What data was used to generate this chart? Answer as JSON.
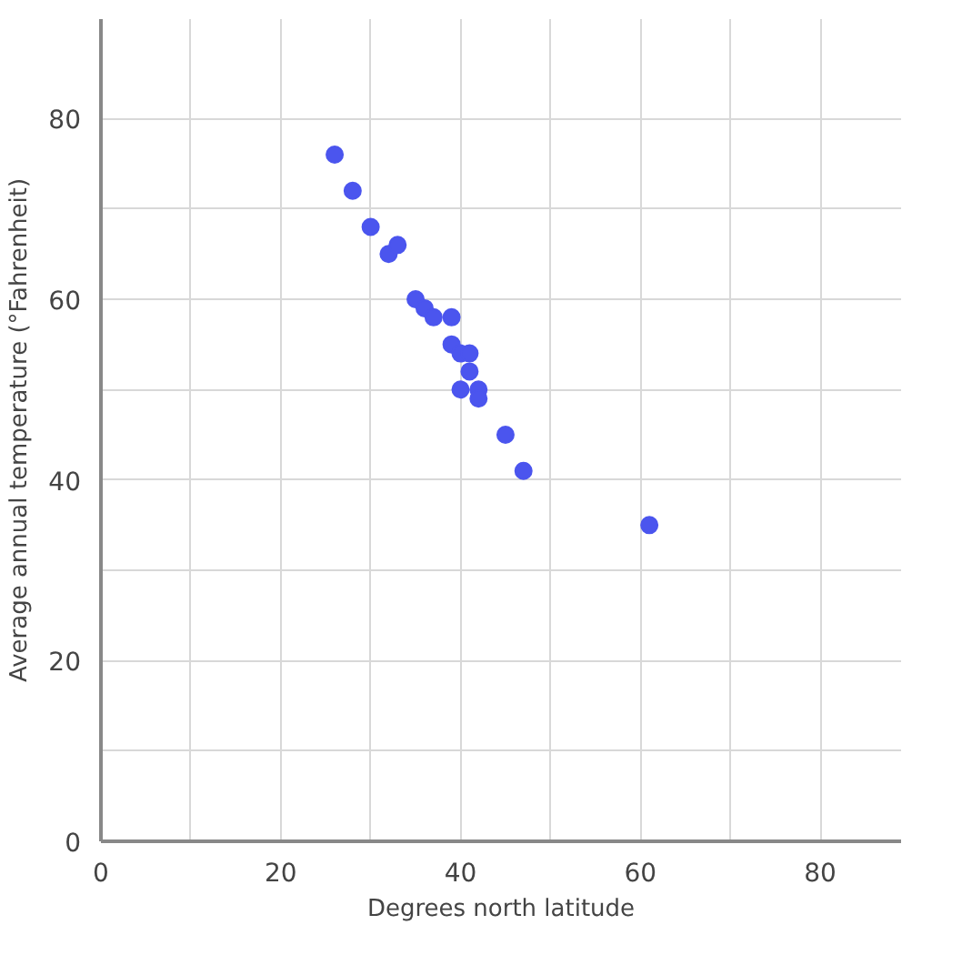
{
  "chart_data": {
    "type": "scatter",
    "xlabel": "Degrees north latitude",
    "ylabel": "Average annual temperature (°Fahrenheit)",
    "x": [
      26,
      28,
      30,
      32,
      33,
      35,
      36,
      37,
      39,
      39,
      40,
      41,
      41,
      40,
      42,
      42,
      45,
      47,
      61
    ],
    "values": [
      76,
      72,
      68,
      65,
      66,
      60,
      59,
      58,
      58,
      55,
      54,
      54,
      52,
      50,
      50,
      49,
      45,
      41,
      35
    ],
    "color": "#4b55ee",
    "marker": "circle",
    "grid": true,
    "xlim": [
      0,
      89
    ],
    "ylim": [
      0,
      91
    ],
    "xticks": [
      0,
      {
        "value": 10,
        "label": null
      },
      20,
      {
        "value": 30,
        "label": null
      },
      40,
      {
        "value": 50,
        "label": null
      },
      60,
      {
        "value": 70,
        "label": null
      },
      80
    ],
    "yticks": [
      0,
      {
        "value": 10,
        "label": null
      },
      20,
      {
        "value": 30,
        "label": null
      },
      40,
      {
        "value": 50,
        "label": null
      },
      60,
      {
        "value": 70,
        "label": null
      },
      80
    ]
  }
}
